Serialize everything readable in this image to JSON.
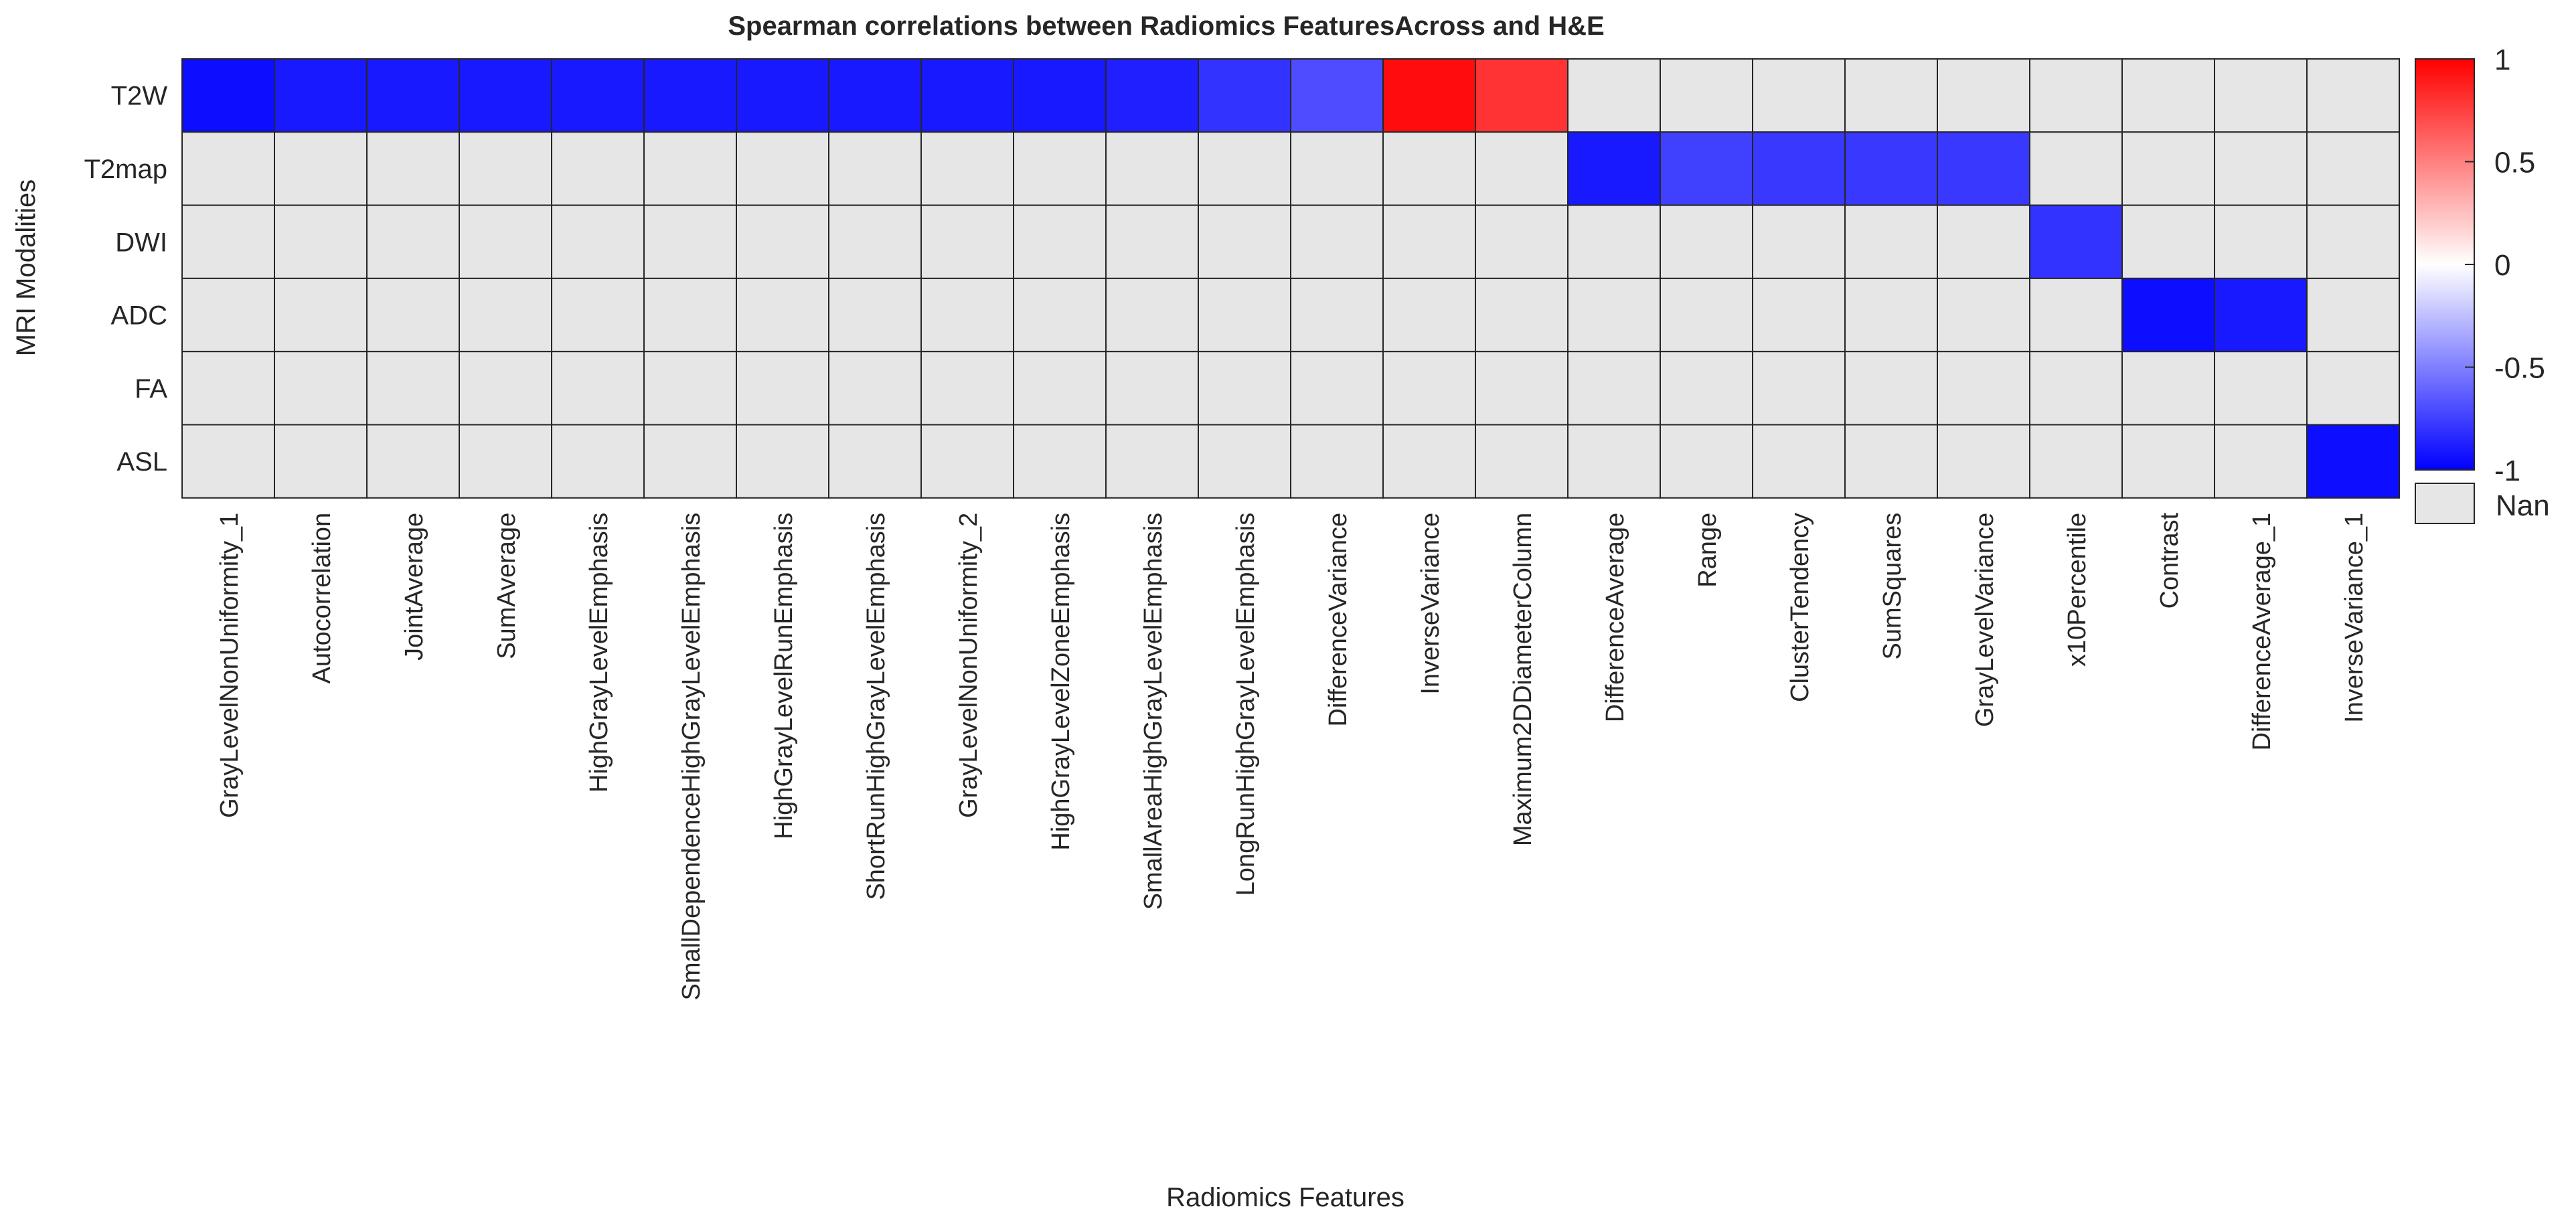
{
  "chart_data": {
    "type": "heatmap",
    "title": "Spearman correlations between Radiomics FeaturesAcross and H&E",
    "xlabel": "Radiomics Features",
    "ylabel": "MRI Modalities",
    "rows": [
      "T2W",
      "T2map",
      "DWI",
      "ADC",
      "FA",
      "ASL"
    ],
    "columns": [
      "GrayLevelNonUniformity_1",
      "Autocorrelation",
      "JointAverage",
      "SumAverage",
      "HighGrayLevelEmphasis",
      "SmallDependenceHighGrayLevelEmphasis",
      "HighGrayLevelRunEmphasis",
      "ShortRunHighGrayLevelEmphasis",
      "GrayLevelNonUniformity_2",
      "HighGrayLevelZoneEmphasis",
      "SmallAreaHighGrayLevelEmphasis",
      "LongRunHighGrayLevelEmphasis",
      "DifferenceVariance",
      "InverseVariance",
      "Maximum2DDiameterColumn",
      "DifferenceAverage",
      "Range",
      "ClusterTendency",
      "SumSquares",
      "GrayLevelVariance",
      "x10Percentile",
      "Contrast",
      "DifferenceAverage_1",
      "InverseVariance_1"
    ],
    "values": [
      [
        -0.95,
        -0.9,
        -0.9,
        -0.9,
        -0.9,
        -0.9,
        -0.9,
        -0.9,
        -0.9,
        -0.9,
        -0.88,
        -0.8,
        -0.7,
        0.95,
        0.8,
        null,
        null,
        null,
        null,
        null,
        null,
        null,
        null,
        null
      ],
      [
        null,
        null,
        null,
        null,
        null,
        null,
        null,
        null,
        null,
        null,
        null,
        null,
        null,
        null,
        null,
        -0.9,
        -0.75,
        -0.78,
        -0.78,
        -0.78,
        null,
        null,
        null,
        null
      ],
      [
        null,
        null,
        null,
        null,
        null,
        null,
        null,
        null,
        null,
        null,
        null,
        null,
        null,
        null,
        null,
        null,
        null,
        null,
        null,
        null,
        -0.8,
        null,
        null,
        null
      ],
      [
        null,
        null,
        null,
        null,
        null,
        null,
        null,
        null,
        null,
        null,
        null,
        null,
        null,
        null,
        null,
        null,
        null,
        null,
        null,
        null,
        null,
        -0.95,
        -0.9,
        null
      ],
      [
        null,
        null,
        null,
        null,
        null,
        null,
        null,
        null,
        null,
        null,
        null,
        null,
        null,
        null,
        null,
        null,
        null,
        null,
        null,
        null,
        null,
        null,
        null,
        null
      ],
      [
        null,
        null,
        null,
        null,
        null,
        null,
        null,
        null,
        null,
        null,
        null,
        null,
        null,
        null,
        null,
        null,
        null,
        null,
        null,
        null,
        null,
        null,
        null,
        -0.95
      ]
    ],
    "colorbar": {
      "range": [
        -1,
        1
      ],
      "ticks": [
        "1",
        "0.5",
        "0",
        "-0.5",
        "-1"
      ],
      "tick_values": [
        1,
        0.5,
        0,
        -0.5,
        -1
      ],
      "colors": {
        "low": "#0000ff",
        "mid": "#ffffff",
        "high": "#ff0000"
      }
    },
    "nan_label": "Nan",
    "nan_color": "#e6e6e6"
  }
}
